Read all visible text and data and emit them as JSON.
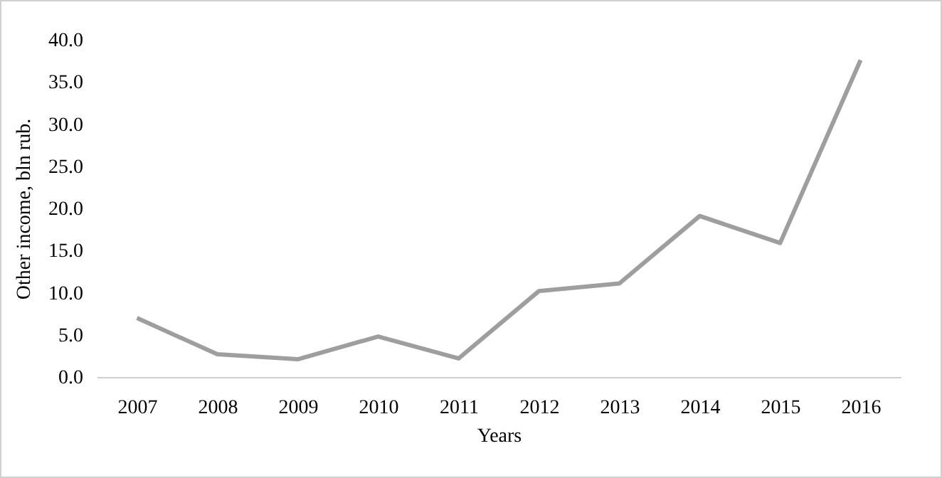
{
  "chart_data": {
    "type": "line",
    "xlabel": "Years",
    "ylabel": "Other income, bln rub.",
    "categories": [
      "2007",
      "2008",
      "2009",
      "2010",
      "2011",
      "2012",
      "2013",
      "2014",
      "2015",
      "2016"
    ],
    "series": [
      {
        "color": "#9e9e9e",
        "values": [
          7.0,
          2.7,
          2.1,
          4.8,
          2.2,
          10.2,
          11.1,
          19.1,
          15.9,
          37.6
        ]
      }
    ],
    "ylim": [
      0,
      40
    ],
    "yticks": [
      {
        "value": 0,
        "label": "0.0"
      },
      {
        "value": 5,
        "label": "5.0"
      },
      {
        "value": 10,
        "label": "10.0"
      },
      {
        "value": 15,
        "label": "15.0"
      },
      {
        "value": 20,
        "label": "20.0"
      },
      {
        "value": 25,
        "label": "25.0"
      },
      {
        "value": 30,
        "label": "30.0"
      },
      {
        "value": 35,
        "label": "35.0"
      },
      {
        "value": 40,
        "label": "40.0"
      }
    ],
    "grid": false,
    "legend": false,
    "marker": "none",
    "line_style": "solid"
  }
}
